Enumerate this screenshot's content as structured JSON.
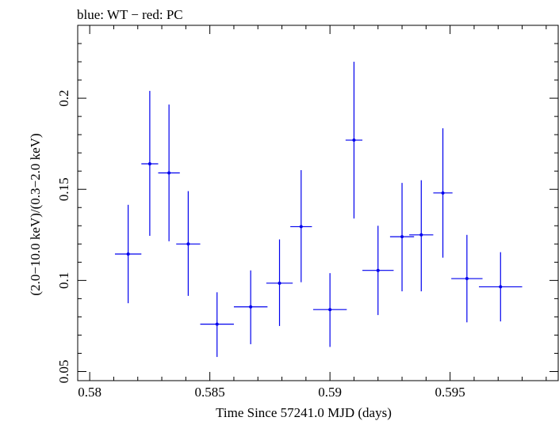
{
  "chart_data": {
    "type": "scatter",
    "title": "blue: WT − red: PC",
    "xlabel": "Time Since 57241.0 MJD (days)",
    "ylabel": "(2.0−10.0 keV)/(0.3−2.0 keV)",
    "xlim": [
      0.5795,
      0.5995
    ],
    "ylim": [
      0.045,
      0.24
    ],
    "x_ticks": [
      0.58,
      0.585,
      0.59,
      0.595
    ],
    "x_tick_labels": [
      "0.58",
      "0.585",
      "0.59",
      "0.595"
    ],
    "y_ticks": [
      0.05,
      0.1,
      0.15,
      0.2
    ],
    "y_tick_labels": [
      "0.05",
      "0.1",
      "0.15",
      "0.2"
    ],
    "grid": false,
    "series": [
      {
        "color": "#0000ee",
        "points": [
          {
            "x": 0.5816,
            "xerr": 0.00055,
            "y": 0.1145,
            "ylo": 0.0875,
            "yhi": 0.1415
          },
          {
            "x": 0.5825,
            "xerr": 0.00035,
            "y": 0.164,
            "ylo": 0.1245,
            "yhi": 0.204
          },
          {
            "x": 0.5833,
            "xerr": 0.00045,
            "y": 0.159,
            "ylo": 0.1215,
            "yhi": 0.1965
          },
          {
            "x": 0.5841,
            "xerr": 0.0005,
            "y": 0.12,
            "ylo": 0.0915,
            "yhi": 0.149
          },
          {
            "x": 0.5853,
            "xerr": 0.0007,
            "y": 0.076,
            "ylo": 0.058,
            "yhi": 0.0935
          },
          {
            "x": 0.5867,
            "xerr": 0.0007,
            "y": 0.0855,
            "ylo": 0.065,
            "yhi": 0.1055
          },
          {
            "x": 0.5879,
            "xerr": 0.00055,
            "y": 0.0985,
            "ylo": 0.075,
            "yhi": 0.1225
          },
          {
            "x": 0.5888,
            "xerr": 0.00045,
            "y": 0.1295,
            "ylo": 0.099,
            "yhi": 0.1605
          },
          {
            "x": 0.59,
            "xerr": 0.0007,
            "y": 0.084,
            "ylo": 0.0635,
            "yhi": 0.104
          },
          {
            "x": 0.591,
            "xerr": 0.00035,
            "y": 0.177,
            "ylo": 0.134,
            "yhi": 0.22
          },
          {
            "x": 0.592,
            "xerr": 0.00065,
            "y": 0.1055,
            "ylo": 0.081,
            "yhi": 0.13
          },
          {
            "x": 0.593,
            "xerr": 0.0005,
            "y": 0.124,
            "ylo": 0.094,
            "yhi": 0.1535
          },
          {
            "x": 0.5938,
            "xerr": 0.0005,
            "y": 0.125,
            "ylo": 0.094,
            "yhi": 0.155
          },
          {
            "x": 0.5947,
            "xerr": 0.0004,
            "y": 0.148,
            "ylo": 0.1125,
            "yhi": 0.1835
          },
          {
            "x": 0.5957,
            "xerr": 0.00065,
            "y": 0.101,
            "ylo": 0.077,
            "yhi": 0.125
          },
          {
            "x": 0.5971,
            "xerr": 0.0009,
            "y": 0.0965,
            "ylo": 0.0775,
            "yhi": 0.1155
          }
        ]
      }
    ]
  }
}
